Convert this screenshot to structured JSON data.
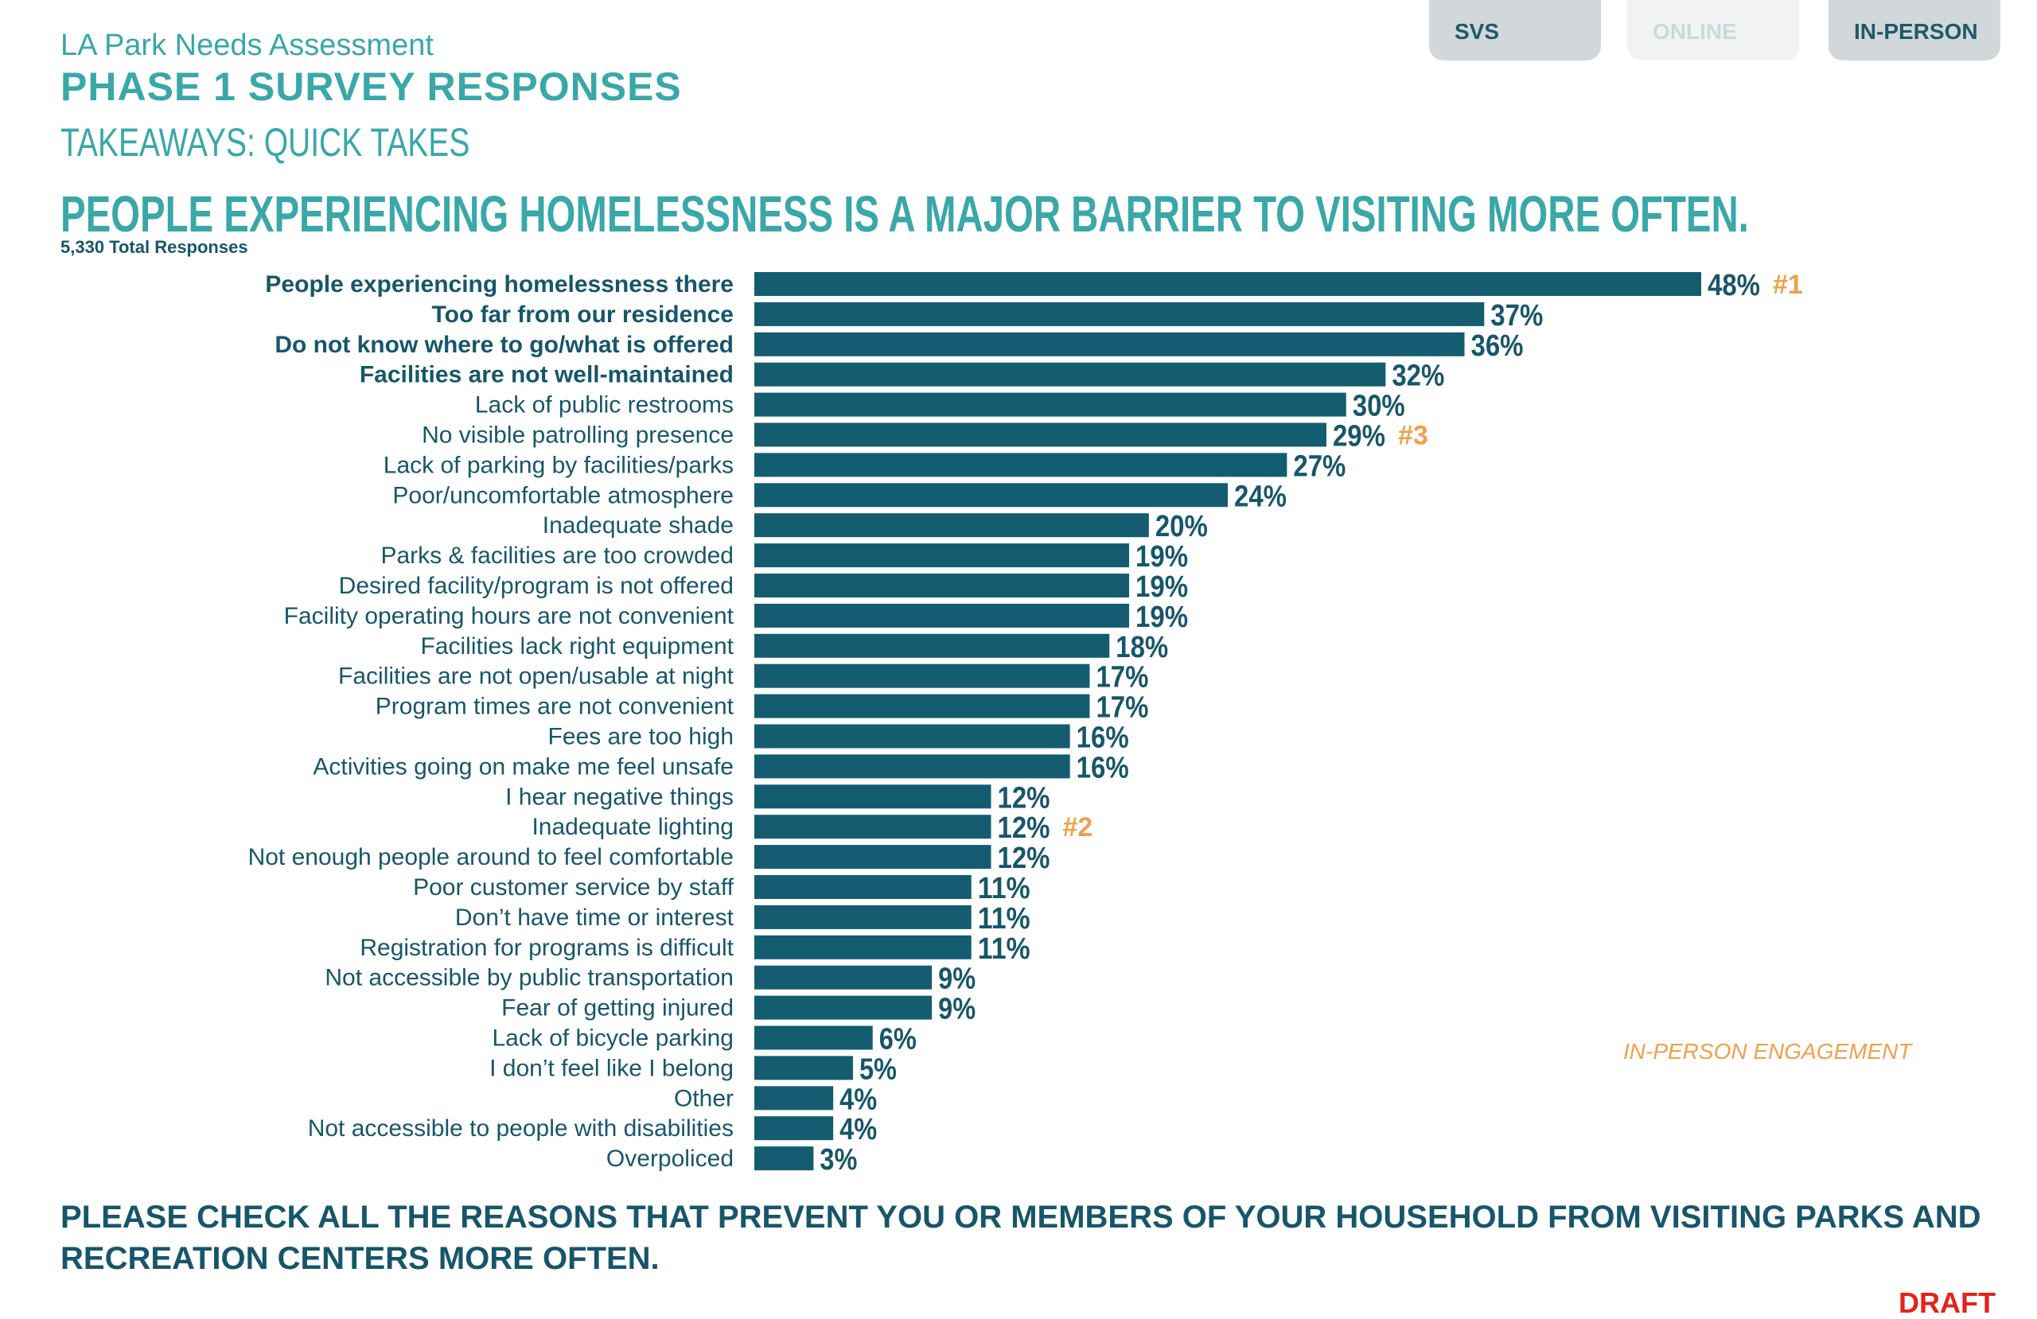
{
  "header": {
    "subtitle": "LA Park Needs Assessment",
    "title": "PHASE 1 SURVEY RESPONSES",
    "takeaway": "TAKEAWAYS: QUICK TAKES"
  },
  "tabs": [
    {
      "label": "SVS"
    },
    {
      "label": "ONLINE"
    },
    {
      "label": "IN-PERSON"
    }
  ],
  "headline": "PEOPLE EXPERIENCING HOMELESSNESS IS A MAJOR BARRIER TO VISITING MORE OFTEN.",
  "total_responses": "5,330 Total Responses",
  "engagement_label": "IN-PERSON ENGAGEMENT",
  "question": "PLEASE CHECK ALL THE REASONS THAT PREVENT YOU OR MEMBERS OF YOUR HOUSEHOLD FROM VISITING PARKS AND RECREATION CENTERS MORE OFTEN.",
  "draft": "DRAFT",
  "colors": {
    "bar": "#145d71",
    "label": "#17566a",
    "accent": "#3aa7a8",
    "rank": "#f0a04b",
    "draft": "#e2231a"
  },
  "chart_data": {
    "type": "bar",
    "orientation": "horizontal",
    "value_suffix": "%",
    "xlim": [
      0,
      48
    ],
    "categories": [
      "People experiencing homelessness there",
      "Too far from our residence",
      "Do not know where to go/what is offered",
      "Facilities are not well-maintained",
      "Lack of public restrooms",
      "No visible patrolling presence",
      "Lack of parking by facilities/parks",
      "Poor/uncomfortable atmosphere",
      "Inadequate shade",
      "Parks & facilities are too crowded",
      "Desired facility/program is not offered",
      "Facility operating hours are not convenient",
      "Facilities lack right equipment",
      "Facilities are not open/usable at night",
      "Program times are not convenient",
      "Fees are too high",
      "Activities going on make me feel unsafe",
      "I hear negative things",
      "Inadequate lighting",
      "Not enough people around to feel comfortable",
      "Poor customer service by staff",
      "Don’t have time or interest",
      "Registration for programs is difficult",
      "Not accessible by public transportation",
      "Fear of getting injured",
      "Lack of bicycle parking",
      "I don’t feel like I belong",
      "Other",
      "Not accessible to people with disabilities",
      "Overpoliced"
    ],
    "values": [
      48,
      37,
      36,
      32,
      30,
      29,
      27,
      24,
      20,
      19,
      19,
      19,
      18,
      17,
      17,
      16,
      16,
      12,
      12,
      12,
      11,
      11,
      11,
      9,
      9,
      6,
      5,
      4,
      4,
      3
    ],
    "bold_categories": [
      0,
      1,
      2,
      3
    ],
    "rank_annotations": [
      {
        "index": 0,
        "label": "#1"
      },
      {
        "index": 18,
        "label": "#2"
      },
      {
        "index": 5,
        "label": "#3"
      }
    ]
  }
}
